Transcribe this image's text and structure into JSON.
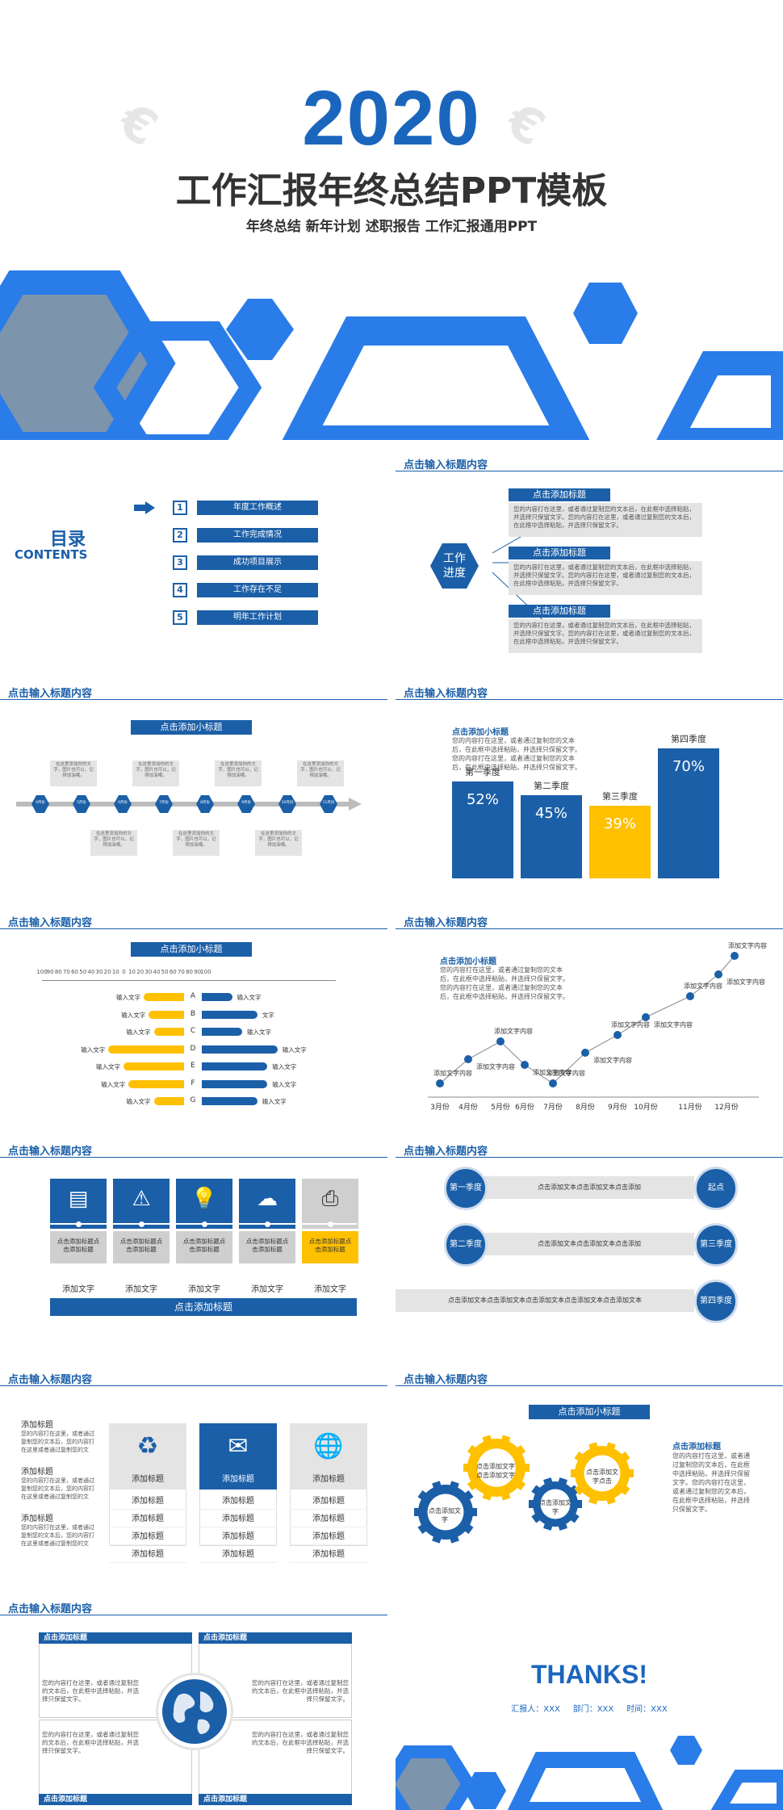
{
  "cover": {
    "year": "2020",
    "title": "工作汇报年终总结PPT模板",
    "subtitle": "年终总结 新年计划 述职报告 工作汇报通用PPT"
  },
  "section_title": "点击输入标题内容",
  "toc": {
    "title": "目录",
    "subtitle": "CONTENTS",
    "items": [
      {
        "num": "1",
        "label": "年度工作概述"
      },
      {
        "num": "2",
        "label": "工作完成情况"
      },
      {
        "num": "3",
        "label": "成功项目展示"
      },
      {
        "num": "4",
        "label": "工作存在不足"
      },
      {
        "num": "5",
        "label": "明年工作计划"
      }
    ]
  },
  "progress": {
    "center": "工作\n进度",
    "items": [
      {
        "title": "点击添加标题",
        "text": "您的内容打在这里，或者通过复制您的文本后，在此框中选择粘贴，并选择只保留文字。您的内容打在这里，或者通过复制您的文本后，在此框中选择粘贴，并选择只保留文字。"
      },
      {
        "title": "点击添加标题",
        "text": "您的内容打在这里，或者通过复制您的文本后，在此框中选择粘贴，并选择只保留文字。您的内容打在这里，或者通过复制您的文本后，在此框中选择粘贴，并选择只保留文字。"
      },
      {
        "title": "点击添加标题",
        "text": "您的内容打在这里，或者通过复制您的文本后，在此框中选择粘贴，并选择只保留文字。您的内容打在这里，或者通过复制您的文本后，在此框中选择粘贴，并选择只保留文字。"
      }
    ]
  },
  "timeline": {
    "subtitle": "点击添加小标题",
    "months": [
      "4月份",
      "5月份",
      "6月份",
      "7月份",
      "8月份",
      "9月份",
      "10月份",
      "11月份"
    ],
    "note": "在这里添加你的文字，图片也可以，记得加油哦。"
  },
  "quarter_chart": {
    "subtitle": "点击添加小标题",
    "desc": "您的内容打在这里，或者通过复制您的文本后，在此框中选择粘贴，并选择只保留文字。您的内容打在这里，或者通过复制您的文本后，在此框中选择粘贴，并选择只保留文字。"
  },
  "chart_data": [
    {
      "type": "bar",
      "categories": [
        "第一季度",
        "第二季度",
        "第三季度",
        "第四季度"
      ],
      "values": [
        52,
        45,
        39,
        70
      ],
      "labels": [
        "52%",
        "45%",
        "39%",
        "70%"
      ],
      "colors": [
        "#1b5fa8",
        "#1b5fa8",
        "#ffc000",
        "#1b5fa8"
      ],
      "ylim": [
        0,
        100
      ]
    },
    {
      "type": "bar",
      "orientation": "horizontal-butterfly",
      "subtitle": "点击添加小标题",
      "axis_ticks": [
        "100",
        "90",
        "80",
        "70",
        "60",
        "50",
        "40",
        "30",
        "20",
        "10",
        "0",
        "10",
        "20",
        "30",
        "40",
        "50",
        "60",
        "70",
        "80",
        "90",
        "100"
      ],
      "categories": [
        "A",
        "B",
        "C",
        "D",
        "E",
        "F",
        "G"
      ],
      "left_values": [
        40,
        35,
        30,
        75,
        60,
        55,
        30
      ],
      "right_values": [
        30,
        55,
        40,
        75,
        65,
        65,
        55
      ],
      "left_labels": [
        "输入文字",
        "输入文字",
        "输入文字",
        "输入文字",
        "输入文字",
        "输入文字",
        "输入文字"
      ],
      "right_labels": [
        "输入文字",
        "文字",
        "输入文字",
        "输入文字",
        "输入文字",
        "输入文字",
        "输入文字"
      ],
      "xlim": [
        0,
        100
      ]
    },
    {
      "type": "line",
      "subtitle": "点击添加小标题",
      "desc": "您的内容打在这里，或者通过复制您的文本后，在此框中选择粘贴，并选择只保留文字。您的内容打在这里，或者通过复制您的文本后，在此框中选择粘贴，并选择只保留文字。",
      "x_ticks": [
        "3月份",
        "4月份",
        "5月份",
        "6月份",
        "7月份",
        "8月份",
        "9月份",
        "10月份",
        "11月份",
        "12月份"
      ],
      "point_label": "添加文字内容"
    }
  ],
  "icons_slide": {
    "items": [
      {
        "icon": "document-icon",
        "caption": "点击添加标题点击添加标题",
        "label": "添加文字"
      },
      {
        "icon": "warning-icon",
        "caption": "点击添加标题点击添加标题",
        "label": "添加文字"
      },
      {
        "icon": "lightbulb-icon",
        "caption": "点击添加标题点击添加标题",
        "label": "添加文字"
      },
      {
        "icon": "cloud-icon",
        "caption": "点击添加标题点击添加标题",
        "label": "添加文字"
      },
      {
        "icon": "printer-icon",
        "caption": "点击添加标题点击添加标题",
        "label": "添加文字"
      }
    ],
    "bottom": "点击添加标题"
  },
  "flow": {
    "nodes": [
      "第一季度",
      "起点",
      "第二季度",
      "第三季度",
      "第四季度"
    ],
    "arrow_text": "点击添加文本点击添加文本点击添加",
    "long_text": "点击添加文本点击添加文本点击添加文本点击添加文本点击添加文本"
  },
  "cards": {
    "left": [
      {
        "title": "添加标题",
        "text": "您的内容打在这里，或者通过复制您的文本后，您的内容打在这里或者通过复制您的文"
      },
      {
        "title": "添加标题",
        "text": "您的内容打在这里，或者通过复制您的文本后，您的内容打在这里或者通过复制您的文"
      },
      {
        "title": "添加标题",
        "text": "您的内容打在这里，或者通过复制您的文本后，您的内容打在这里或者通过复制您的文"
      }
    ],
    "cols": [
      {
        "icon": "recycle-icon",
        "head": "添加标题",
        "rows": [
          "添加标题",
          "添加标题",
          "添加标题",
          "添加标题"
        ]
      },
      {
        "icon": "mail-icon",
        "head": "添加标题",
        "rows": [
          "添加标题",
          "添加标题",
          "添加标题",
          "添加标题"
        ]
      },
      {
        "icon": "globe-icon",
        "head": "添加标题",
        "rows": [
          "添加标题",
          "添加标题",
          "添加标题",
          "添加标题"
        ]
      }
    ]
  },
  "gears": {
    "subtitle": "点击添加小标题",
    "g1": "点击添加文字",
    "g2": "点击添加文字点击添加文字",
    "g3": "点击添加文字",
    "g4": "点击添加文字点击",
    "side_title": "点击添加标题",
    "side_text": "您的内容打在这里，或者通过复制您的文本后，在此框中选择粘贴，并选择只保留文字。您的内容打在这里，或者通过复制您的文本后，在此框中选择粘贴，并选择只保留文字。"
  },
  "globe_slide": {
    "box_title": "点击添加标题",
    "text": "您的内容打在这里，或者通过复制您的文本后，在此框中选择粘贴，并选择只保留文字。"
  },
  "thanks": {
    "title": "THANKS!",
    "meta": "汇报人：XXX     部门：XXX     时间：XXX"
  }
}
